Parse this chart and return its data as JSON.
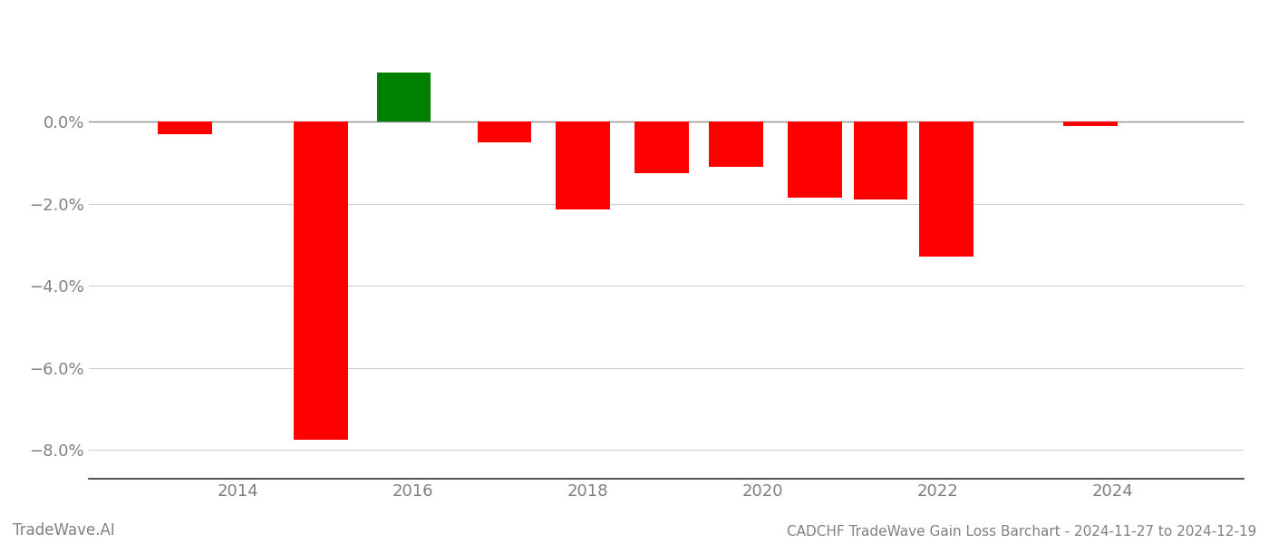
{
  "values": [
    -0.3,
    -7.75,
    1.2,
    -0.5,
    -2.15,
    -1.25,
    -1.1,
    -1.85,
    -1.9,
    -3.3,
    -0.1
  ],
  "colors": [
    "#ff0000",
    "#ff0000",
    "#008000",
    "#ff0000",
    "#ff0000",
    "#ff0000",
    "#ff0000",
    "#ff0000",
    "#ff0000",
    "#ff0000",
    "#ff0000"
  ],
  "x_positions": [
    2013.4,
    2014.95,
    2015.9,
    2017.05,
    2017.95,
    2018.85,
    2019.7,
    2020.6,
    2021.35,
    2022.1,
    2023.75
  ],
  "bar_width": 0.62,
  "title": "CADCHF TradeWave Gain Loss Barchart - 2024-11-27 to 2024-12-19",
  "watermark": "TradeWave.AI",
  "xlim": [
    2012.3,
    2025.5
  ],
  "ylim": [
    -8.7,
    1.9
  ],
  "yticks": [
    0.0,
    -2.0,
    -4.0,
    -6.0,
    -8.0
  ],
  "xticks": [
    2014,
    2016,
    2018,
    2020,
    2022,
    2024
  ],
  "grid_color": "#d0d0d0",
  "axis_color": "#888888",
  "tick_label_color": "#808080",
  "background_color": "#ffffff",
  "title_fontsize": 11,
  "watermark_fontsize": 12,
  "tick_fontsize": 13
}
